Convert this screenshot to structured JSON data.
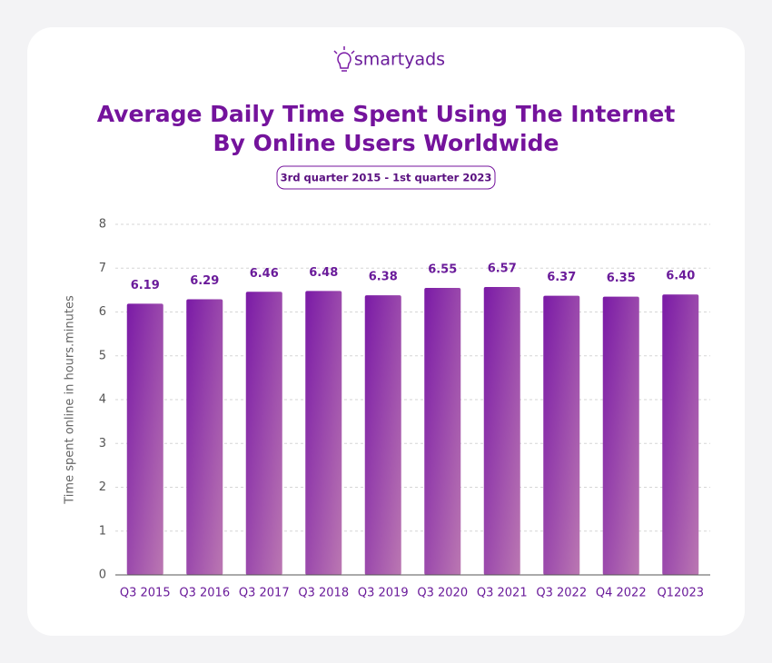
{
  "logo": "smartyads",
  "chart_data": {
    "type": "bar",
    "title": [
      "Average Daily Time Spent Using The Internet",
      "By Online Users Worldwide"
    ],
    "subtitle": "3rd quarter 2015 - 1st quarter 2023",
    "y_label": "Time spent online in hours.minutes",
    "categories": [
      "Q3 2015",
      "Q3 2016",
      "Q3 2017",
      "Q3 2018",
      "Q3 2019",
      "Q3 2020",
      "Q3 2021",
      "Q3 2022",
      "Q4 2022",
      "Q12023"
    ],
    "values": [
      6.19,
      6.29,
      6.46,
      6.48,
      6.38,
      6.55,
      6.57,
      6.37,
      6.35,
      6.4
    ],
    "value_labels": [
      "6.19",
      "6.29",
      "6.46",
      "6.48",
      "6.38",
      "6.55",
      "6.57",
      "6.37",
      "6.35",
      "6.40"
    ],
    "color": "#7a1aa6",
    "ylim": [
      0,
      8
    ],
    "yticks": [
      0,
      1,
      2,
      3,
      4,
      5,
      6,
      7,
      8
    ],
    "grid": true
  }
}
